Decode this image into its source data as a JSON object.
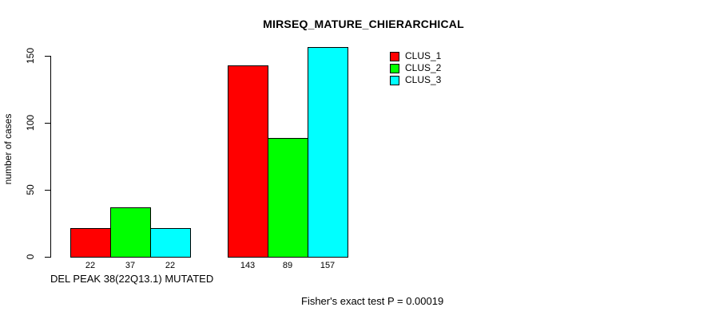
{
  "chart_data": {
    "type": "bar",
    "title": "MIRSEQ_MATURE_CHIERARCHICAL",
    "ylabel": "number of cases",
    "xlabel": "DEL PEAK 38(22Q13.1) MUTATED",
    "categories": [
      "DEL PEAK 38(22Q13.1) MUTATED",
      ""
    ],
    "series": [
      {
        "name": "CLUS_1",
        "color": "#ff0000",
        "values": [
          22,
          143
        ]
      },
      {
        "name": "CLUS_2",
        "color": "#00ff00",
        "values": [
          37,
          89
        ]
      },
      {
        "name": "CLUS_3",
        "color": "#00ffff",
        "values": [
          22,
          157
        ]
      }
    ],
    "bar_value_labels": [
      [
        22,
        37,
        22
      ],
      [
        143,
        89,
        157
      ]
    ],
    "yticks": [
      0,
      50,
      100,
      150
    ],
    "ylim": [
      0,
      157
    ],
    "grid": false,
    "legend_position": "top-right",
    "annotation": "Fisher's exact test P = 0.00019",
    "axis_color": "#000000",
    "background_color": "#ffffff"
  }
}
